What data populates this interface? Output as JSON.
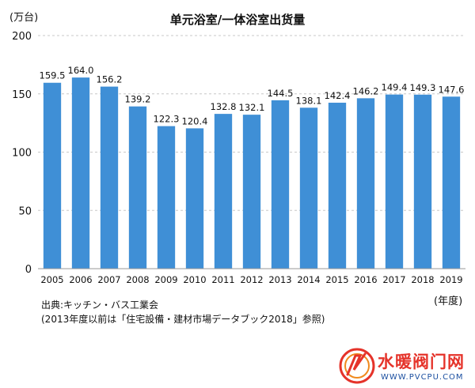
{
  "chart_data": {
    "type": "bar",
    "title": "单元浴室/一体浴室出货量",
    "y_unit_label": "(万台)",
    "x_unit_label": "(年度)",
    "categories": [
      "2005",
      "2006",
      "2007",
      "2008",
      "2009",
      "2010",
      "2011",
      "2012",
      "2013",
      "2014",
      "2015",
      "2016",
      "2017",
      "2018",
      "2019"
    ],
    "values": [
      159.5,
      164.0,
      156.2,
      139.2,
      122.3,
      120.4,
      132.8,
      132.1,
      144.5,
      138.1,
      142.4,
      146.2,
      149.4,
      149.3,
      147.6
    ],
    "value_labels": [
      "159.5",
      "164.0",
      "156.2",
      "139.2",
      "122.3",
      "120.4",
      "132.8",
      "132.1",
      "144.5",
      "138.1",
      "142.4",
      "146.2",
      "149.4",
      "149.3",
      "147.6"
    ],
    "ylim": [
      0,
      200
    ],
    "yticks": [
      0,
      50,
      100,
      150,
      200
    ],
    "grid": true,
    "bar_color": "#3f8fd6"
  },
  "notes": {
    "source": "出典:キッチン・バス工業会",
    "detail": "(2013年度以前は「住宅設備・建材市場データブック2018」参照)"
  },
  "watermark": {
    "title": "水暖阀门网",
    "url": "WWW.PVCPU.COM"
  }
}
